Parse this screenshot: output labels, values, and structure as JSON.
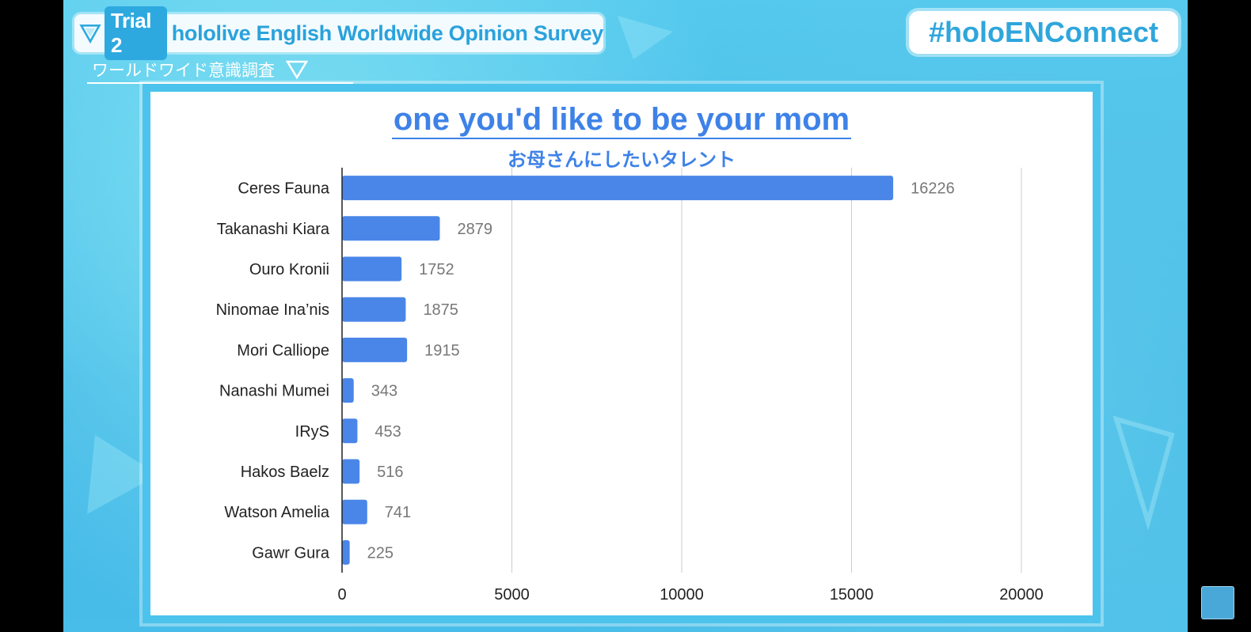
{
  "header": {
    "trial_label": "Trial 2",
    "survey_title": "hololive English Worldwide Opinion Survey",
    "survey_subtitle": "ワールドワイド意識調査",
    "hashtag": "#holoENConnect"
  },
  "colors": {
    "bar": "#4a86e8",
    "title": "#3e82e8",
    "accent": "#2ea9e0"
  },
  "chart_data": {
    "type": "bar",
    "orientation": "horizontal",
    "title": "one you'd like to be your mom",
    "subtitle": "お母さんにしたいタレント",
    "categories": [
      "Ceres Fauna",
      "Takanashi Kiara",
      "Ouro Kronii",
      "Ninomae Ina’nis",
      "Mori Calliope",
      "Nanashi Mumei",
      "IRyS",
      "Hakos Baelz",
      "Watson Amelia",
      "Gawr Gura"
    ],
    "values": [
      16226,
      2879,
      1752,
      1875,
      1915,
      343,
      453,
      516,
      741,
      225
    ],
    "data_labels": [
      "16226",
      "2879",
      "1752",
      "1875",
      "1915",
      "343",
      "453",
      "516",
      "741",
      "225"
    ],
    "xlim": [
      0,
      20000
    ],
    "x_ticks": [
      0,
      5000,
      10000,
      15000,
      20000
    ],
    "x_tick_labels": [
      "0",
      "5000",
      "10000",
      "15000",
      "20000"
    ],
    "grid": true,
    "xlabel": "",
    "ylabel": ""
  }
}
